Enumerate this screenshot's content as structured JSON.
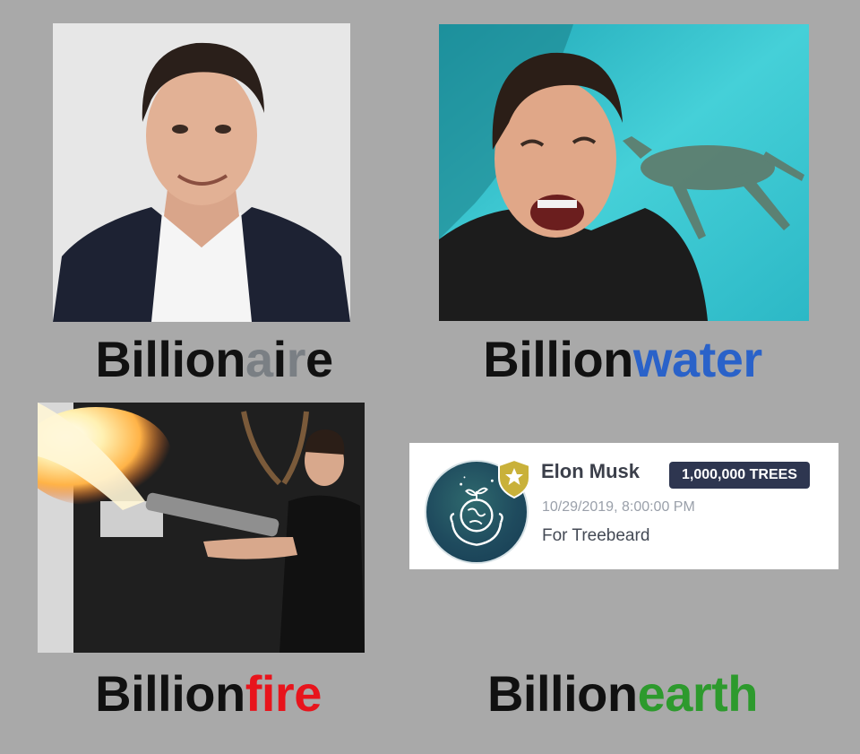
{
  "captions": [
    {
      "prefix": "Billion",
      "suffix_parts": [
        {
          "text": "a",
          "color": "#7a7f84"
        },
        {
          "text": "i",
          "color": "#111111"
        },
        {
          "text": "r",
          "color": "#7a7f84"
        },
        {
          "text": "e",
          "color": "#111111"
        }
      ]
    },
    {
      "prefix": "Billion",
      "suffix_parts": [
        {
          "text": "water",
          "color": "#2a62c9"
        }
      ]
    },
    {
      "prefix": "Billion",
      "suffix_parts": [
        {
          "text": "fire",
          "color": "#e8141c"
        }
      ]
    },
    {
      "prefix": "Billion",
      "suffix_parts": [
        {
          "text": "earth",
          "color": "#2d9a2d"
        }
      ]
    }
  ],
  "photos": [
    {
      "subject": "portrait-photo",
      "background": "#e6e6e6"
    },
    {
      "subject": "laughing-with-deer-photo",
      "background": "#35c2cc"
    },
    {
      "subject": "flamethrower-photo",
      "background": "#1e1e1e"
    }
  ],
  "certificate": {
    "name": "Elon Musk",
    "trees": "1,000,000 TREES",
    "date": "10/29/2019, 8:00:00 PM",
    "note": "For Treebeard",
    "accent": "#2e3650",
    "shield_color": "#c9b13a"
  }
}
